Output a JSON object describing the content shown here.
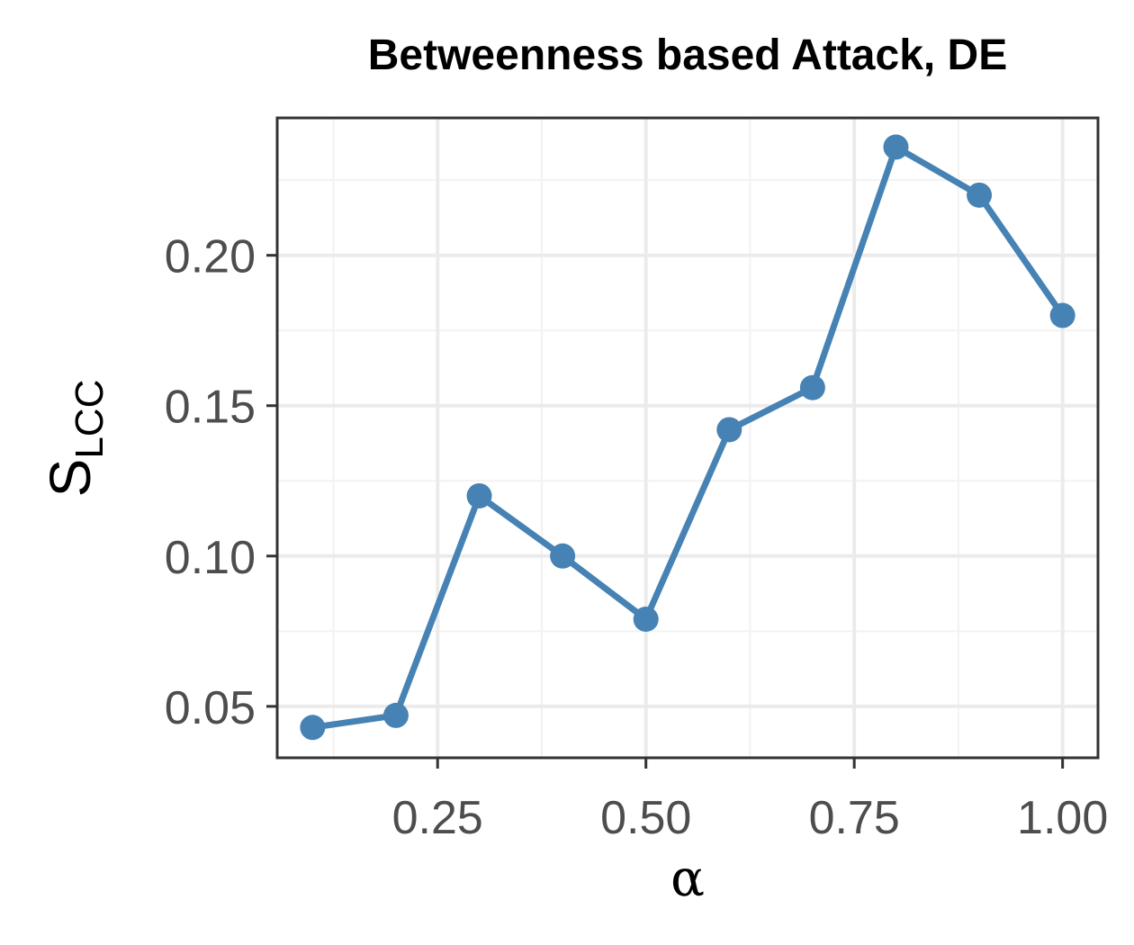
{
  "chart_data": {
    "type": "line",
    "title": "Betweenness based Attack, DE",
    "xlabel": "α",
    "ylabel": {
      "main": "S",
      "subscript": "LCC"
    },
    "x": [
      0.1,
      0.2,
      0.3,
      0.4,
      0.5,
      0.6,
      0.7,
      0.8,
      0.9,
      1.0
    ],
    "series": [
      {
        "values": [
          0.043,
          0.047,
          0.12,
          0.1,
          0.079,
          0.142,
          0.156,
          0.236,
          0.22,
          0.18
        ],
        "color": "#4682b4"
      }
    ],
    "xlim": [
      0.0575,
      1.0425
    ],
    "ylim": [
      0.0329,
      0.2457
    ],
    "x_ticks": [
      0.25,
      0.5,
      0.75,
      1.0
    ],
    "x_tick_labels": [
      "0.25",
      "0.50",
      "0.75",
      "1.00"
    ],
    "x_minor_ticks": [
      0.125,
      0.375,
      0.625,
      0.875
    ],
    "y_ticks": [
      0.05,
      0.1,
      0.15,
      0.2
    ],
    "y_tick_labels": [
      "0.05",
      "0.10",
      "0.15",
      "0.20"
    ],
    "y_minor_ticks": [
      0.075,
      0.125,
      0.175,
      0.225
    ],
    "grid": true,
    "legend": "none",
    "colors": {
      "grid_major": "#ebebeb",
      "grid_minor": "#f2f2f2",
      "panel_border": "#333333",
      "tick_text": "#4d4d4d",
      "title": "#000000"
    }
  }
}
